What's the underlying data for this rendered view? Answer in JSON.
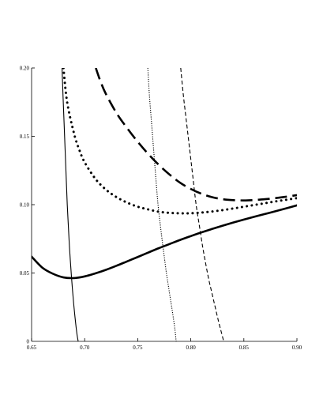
{
  "chart_data": {
    "type": "line",
    "title": "",
    "xlabel": "",
    "ylabel": "",
    "xlim": [
      0.65,
      0.9
    ],
    "ylim": [
      0,
      0.2
    ],
    "grid": false,
    "legend": "none",
    "x_ticks": [
      0.65,
      0.7,
      0.75,
      0.8,
      0.85,
      0.9
    ],
    "x_tick_labels": [
      "0.65",
      "0.70",
      "0.75",
      "0.80",
      "0.85",
      "0.90"
    ],
    "y_ticks": [
      0.05,
      0.1,
      0.15,
      0.2
    ],
    "y_tick_labels": [
      "0.05",
      "0.10",
      "0.15",
      "0.20"
    ],
    "y_zero_label": "0",
    "series": [
      {
        "style": "thick-solid",
        "x": [
          0.65,
          0.66,
          0.67,
          0.68,
          0.69,
          0.7,
          0.71,
          0.72,
          0.73,
          0.74,
          0.75,
          0.76,
          0.77,
          0.78,
          0.79,
          0.8,
          0.81,
          0.82,
          0.83,
          0.84,
          0.85,
          0.86,
          0.87,
          0.88,
          0.89,
          0.9
        ],
        "y": [
          0.062,
          0.054,
          0.0495,
          0.0468,
          0.0463,
          0.0475,
          0.0497,
          0.0523,
          0.0553,
          0.0585,
          0.0617,
          0.065,
          0.0682,
          0.0712,
          0.0742,
          0.077,
          0.0797,
          0.0822,
          0.0846,
          0.0869,
          0.0891,
          0.0912,
          0.0932,
          0.0952,
          0.0973,
          0.0995
        ]
      },
      {
        "style": "thick-dotted",
        "x": [
          0.68,
          0.6835,
          0.69,
          0.695,
          0.7,
          0.71,
          0.72,
          0.73,
          0.74,
          0.75,
          0.76,
          0.77,
          0.78,
          0.79,
          0.8,
          0.81,
          0.82,
          0.83,
          0.84,
          0.85,
          0.86,
          0.87,
          0.88,
          0.89,
          0.9
        ],
        "y": [
          0.2,
          0.175,
          0.152,
          0.14,
          0.131,
          0.119,
          0.111,
          0.1055,
          0.1015,
          0.0985,
          0.0965,
          0.0948,
          0.094,
          0.0937,
          0.0937,
          0.0942,
          0.095,
          0.096,
          0.0972,
          0.0985,
          0.0998,
          0.1011,
          0.1024,
          0.1036,
          0.1048
        ]
      },
      {
        "style": "thick-dashed",
        "x": [
          0.7105,
          0.715,
          0.72,
          0.73,
          0.74,
          0.75,
          0.76,
          0.77,
          0.78,
          0.79,
          0.8,
          0.81,
          0.82,
          0.83,
          0.84,
          0.85,
          0.86,
          0.87,
          0.88,
          0.89,
          0.9
        ],
        "y": [
          0.2,
          0.19,
          0.181,
          0.167,
          0.156,
          0.146,
          0.137,
          0.129,
          0.122,
          0.116,
          0.1115,
          0.108,
          0.1055,
          0.104,
          0.1033,
          0.1031,
          0.1034,
          0.104,
          0.1048,
          0.1058,
          0.107
        ]
      },
      {
        "style": "thin-solid",
        "x": [
          0.6787,
          0.6796,
          0.6806,
          0.6816,
          0.6826,
          0.6836,
          0.6846,
          0.6856,
          0.6866,
          0.6876,
          0.6886,
          0.6896,
          0.6906,
          0.6917,
          0.6928,
          0.6939
        ],
        "y": [
          0.2,
          0.18,
          0.16,
          0.14,
          0.12,
          0.1,
          0.085,
          0.07,
          0.058,
          0.047,
          0.037,
          0.028,
          0.02,
          0.012,
          0.005,
          0.0
        ]
      },
      {
        "style": "thin-dotted",
        "x": [
          0.7595,
          0.761,
          0.763,
          0.765,
          0.767,
          0.769,
          0.771,
          0.773,
          0.775,
          0.777,
          0.779,
          0.781,
          0.783,
          0.785,
          0.7862
        ],
        "y": [
          0.2,
          0.18,
          0.16,
          0.14,
          0.12,
          0.101,
          0.087,
          0.074,
          0.062,
          0.05,
          0.04,
          0.03,
          0.02,
          0.009,
          0.0
        ]
      },
      {
        "style": "thin-dashed",
        "x": [
          0.7905,
          0.793,
          0.796,
          0.799,
          0.802,
          0.805,
          0.808,
          0.811,
          0.814,
          0.817,
          0.82,
          0.823,
          0.826,
          0.829,
          0.831
        ],
        "y": [
          0.2,
          0.18,
          0.16,
          0.14,
          0.12,
          0.1,
          0.085,
          0.07,
          0.057,
          0.045,
          0.035,
          0.025,
          0.015,
          0.006,
          0.0
        ]
      }
    ]
  }
}
